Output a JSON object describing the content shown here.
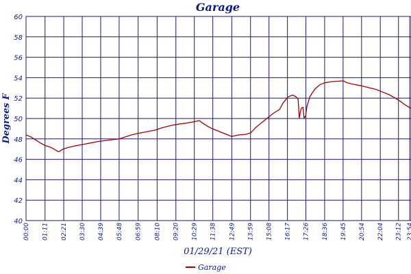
{
  "chart_data": {
    "type": "line",
    "title": "Garage",
    "xlabel": "01/29/21 (EST)",
    "ylabel": "Degrees F",
    "ylim": [
      40,
      60
    ],
    "yticks": [
      40,
      42,
      44,
      46,
      48,
      50,
      52,
      54,
      56,
      58,
      60
    ],
    "xlim_hours": [
      0,
      23.98
    ],
    "xticks": [
      {
        "label": "00:00",
        "h": 0.0
      },
      {
        "label": "01:11",
        "h": 1.1833
      },
      {
        "label": "02:21",
        "h": 2.35
      },
      {
        "label": "03:30",
        "h": 3.5
      },
      {
        "label": "04:39",
        "h": 4.65
      },
      {
        "label": "05:48",
        "h": 5.8
      },
      {
        "label": "06:59",
        "h": 6.9833
      },
      {
        "label": "08:10",
        "h": 8.1667
      },
      {
        "label": "09:20",
        "h": 9.3333
      },
      {
        "label": "10:29",
        "h": 10.4833
      },
      {
        "label": "11:38",
        "h": 11.6333
      },
      {
        "label": "12:49",
        "h": 12.8167
      },
      {
        "label": "13:59",
        "h": 13.9833
      },
      {
        "label": "15:08",
        "h": 15.1333
      },
      {
        "label": "16:17",
        "h": 16.2833
      },
      {
        "label": "17:26",
        "h": 17.4333
      },
      {
        "label": "18:36",
        "h": 18.6
      },
      {
        "label": "19:45",
        "h": 19.75
      },
      {
        "label": "20:54",
        "h": 20.9
      },
      {
        "label": "22:04",
        "h": 22.0667
      },
      {
        "label": "23:12",
        "h": 23.2
      },
      {
        "label": "23:54",
        "h": 23.9
      }
    ],
    "grid": true,
    "legend_position": "bottom-center",
    "series": [
      {
        "name": "Garage",
        "color": "#a00000",
        "points": [
          [
            0.0,
            48.4
          ],
          [
            0.3,
            48.2
          ],
          [
            0.6,
            47.9
          ],
          [
            0.9,
            47.6
          ],
          [
            1.2,
            47.35
          ],
          [
            1.5,
            47.2
          ],
          [
            1.8,
            46.95
          ],
          [
            2.0,
            46.75
          ],
          [
            2.1,
            46.8
          ],
          [
            2.3,
            47.0
          ],
          [
            2.6,
            47.15
          ],
          [
            3.0,
            47.3
          ],
          [
            3.5,
            47.45
          ],
          [
            4.0,
            47.6
          ],
          [
            4.5,
            47.75
          ],
          [
            5.0,
            47.85
          ],
          [
            5.5,
            47.95
          ],
          [
            5.8,
            48.0
          ],
          [
            6.2,
            48.2
          ],
          [
            6.6,
            48.4
          ],
          [
            7.0,
            48.55
          ],
          [
            7.5,
            48.7
          ],
          [
            8.0,
            48.85
          ],
          [
            8.5,
            49.1
          ],
          [
            9.0,
            49.3
          ],
          [
            9.5,
            49.45
          ],
          [
            10.0,
            49.55
          ],
          [
            10.5,
            49.7
          ],
          [
            10.8,
            49.8
          ],
          [
            11.0,
            49.55
          ],
          [
            11.3,
            49.25
          ],
          [
            11.6,
            49.0
          ],
          [
            12.0,
            48.75
          ],
          [
            12.4,
            48.5
          ],
          [
            12.8,
            48.25
          ],
          [
            13.0,
            48.3
          ],
          [
            13.3,
            48.4
          ],
          [
            13.7,
            48.45
          ],
          [
            14.0,
            48.6
          ],
          [
            14.3,
            49.1
          ],
          [
            14.6,
            49.5
          ],
          [
            15.0,
            50.0
          ],
          [
            15.4,
            50.5
          ],
          [
            15.8,
            50.9
          ],
          [
            16.0,
            51.5
          ],
          [
            16.3,
            52.1
          ],
          [
            16.6,
            52.3
          ],
          [
            16.8,
            52.15
          ],
          [
            16.95,
            51.9
          ],
          [
            17.02,
            50.0
          ],
          [
            17.08,
            50.6
          ],
          [
            17.15,
            51.0
          ],
          [
            17.25,
            51.1
          ],
          [
            17.32,
            50.0
          ],
          [
            17.42,
            50.3
          ],
          [
            17.5,
            51.2
          ],
          [
            17.7,
            52.2
          ],
          [
            18.0,
            52.9
          ],
          [
            18.3,
            53.3
          ],
          [
            18.6,
            53.5
          ],
          [
            19.0,
            53.6
          ],
          [
            19.4,
            53.65
          ],
          [
            19.75,
            53.7
          ],
          [
            20.0,
            53.5
          ],
          [
            20.4,
            53.35
          ],
          [
            20.9,
            53.2
          ],
          [
            21.4,
            53.0
          ],
          [
            21.8,
            52.85
          ],
          [
            22.2,
            52.6
          ],
          [
            22.6,
            52.35
          ],
          [
            23.0,
            52.0
          ],
          [
            23.3,
            51.7
          ],
          [
            23.6,
            51.35
          ],
          [
            23.98,
            51.0
          ]
        ]
      }
    ]
  }
}
